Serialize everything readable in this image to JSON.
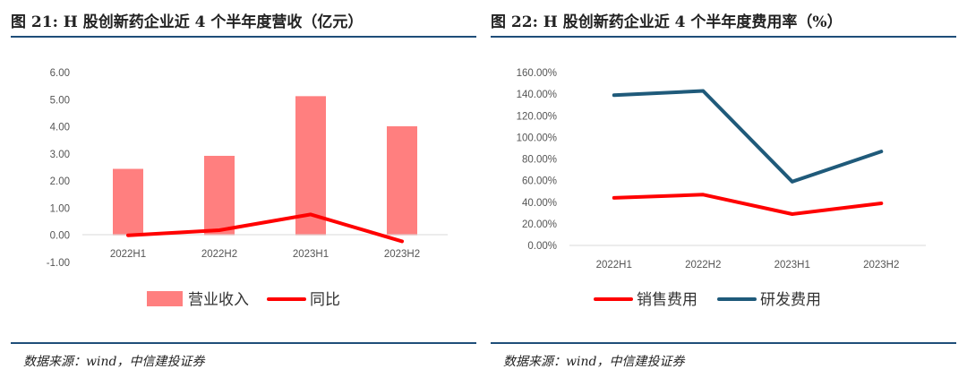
{
  "charts": [
    {
      "title": "图 21: H 股创新药企业近 4 个半年度营收（亿元）",
      "source": "数据来源：wind，中信建投证券"
    },
    {
      "title": "图 22: H 股创新药企业近 4 个半年度费用率（%）",
      "source": "数据来源：wind，中信建投证券"
    }
  ],
  "chart_data": [
    {
      "type": "bar",
      "categories": [
        "2022H1",
        "2022H2",
        "2023H1",
        "2023H2"
      ],
      "series": [
        {
          "name": "营业收入",
          "kind": "bar",
          "color": "#ff7f7f",
          "values": [
            2.45,
            2.93,
            5.13,
            4.02
          ]
        },
        {
          "name": "同比",
          "kind": "line",
          "color": "#ff0000",
          "values": [
            0.0,
            0.19,
            0.77,
            -0.22
          ]
        }
      ],
      "y_ticks": [
        "6.00",
        "5.00",
        "4.00",
        "3.00",
        "2.00",
        "1.00",
        "0.00",
        "-1.00"
      ],
      "ylim": [
        -1,
        6
      ],
      "grid": false,
      "legend": "bottom"
    },
    {
      "type": "line",
      "categories": [
        "2022H1",
        "2022H2",
        "2023H1",
        "2023H2"
      ],
      "series": [
        {
          "name": "销售费用",
          "color": "#ff0000",
          "values": [
            44,
            47,
            29,
            39
          ]
        },
        {
          "name": "研发费用",
          "color": "#1f5a7a",
          "values": [
            139,
            143,
            59,
            87
          ]
        }
      ],
      "y_ticks": [
        "160.00%",
        "140.00%",
        "120.00%",
        "100.00%",
        "80.00%",
        "60.00%",
        "40.00%",
        "20.00%",
        "0.00%"
      ],
      "ylim": [
        0,
        160
      ],
      "grid": false,
      "legend": "bottom"
    }
  ]
}
